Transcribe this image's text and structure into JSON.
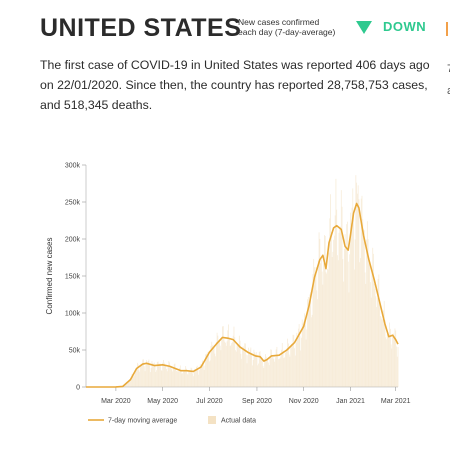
{
  "header": {
    "country": "UNITED STATES",
    "trend_label_line1": "New cases confirmed",
    "trend_label_line2": "each day (7-day-average)",
    "trend_value": "DOWN",
    "trend_color": "#2ec98f",
    "edge_chars_1": "7",
    "edge_chars_2": "a"
  },
  "summary": {
    "line1": "The first case of COVID-19 in United States was reported 406 days ago",
    "line2": "on 22/01/2020. Since then, the country has reported 28,758,753 cases,",
    "line3": "and 518,345 deaths."
  },
  "colors": {
    "line": "#e8a93a",
    "bars": "#f7ecd9",
    "grid": "#e6e6e6",
    "text": "#2b2b2b"
  },
  "chart_data": {
    "type": "line",
    "ylabel": "Confirmed new cases",
    "ylim": [
      0,
      300000
    ],
    "yticks": [
      {
        "value": 0,
        "label": "0"
      },
      {
        "value": 50000,
        "label": "50k"
      },
      {
        "value": 100000,
        "label": "100k"
      },
      {
        "value": 150000,
        "label": "150k"
      },
      {
        "value": 200000,
        "label": "200k"
      },
      {
        "value": 250000,
        "label": "250k"
      },
      {
        "value": 300000,
        "label": "300k"
      }
    ],
    "xticks": [
      {
        "date": "2020-03-01",
        "label": "Mar 2020"
      },
      {
        "date": "2020-05-01",
        "label": "May 2020"
      },
      {
        "date": "2020-07-01",
        "label": "Jul 2020"
      },
      {
        "date": "2020-09-01",
        "label": "Sep 2020"
      },
      {
        "date": "2020-11-01",
        "label": "Nov 2020"
      },
      {
        "date": "2021-01-01",
        "label": "Jan 2021"
      },
      {
        "date": "2021-03-01",
        "label": "Mar 2021"
      }
    ],
    "xlim": [
      "2020-01-22",
      "2021-03-04"
    ],
    "series": [
      {
        "name": "7-day moving average",
        "points": [
          [
            "2020-01-22",
            0
          ],
          [
            "2020-02-15",
            0
          ],
          [
            "2020-03-01",
            100
          ],
          [
            "2020-03-10",
            800
          ],
          [
            "2020-03-20",
            10000
          ],
          [
            "2020-03-28",
            25000
          ],
          [
            "2020-04-05",
            31000
          ],
          [
            "2020-04-10",
            32000
          ],
          [
            "2020-04-20",
            29000
          ],
          [
            "2020-05-01",
            30000
          ],
          [
            "2020-05-10",
            28000
          ],
          [
            "2020-05-20",
            24000
          ],
          [
            "2020-05-25",
            22000
          ],
          [
            "2020-06-01",
            22000
          ],
          [
            "2020-06-10",
            21000
          ],
          [
            "2020-06-20",
            27000
          ],
          [
            "2020-06-25",
            36000
          ],
          [
            "2020-07-01",
            47000
          ],
          [
            "2020-07-10",
            58000
          ],
          [
            "2020-07-18",
            67000
          ],
          [
            "2020-07-25",
            66000
          ],
          [
            "2020-08-01",
            64000
          ],
          [
            "2020-08-10",
            54000
          ],
          [
            "2020-08-20",
            47000
          ],
          [
            "2020-08-30",
            42000
          ],
          [
            "2020-09-05",
            41000
          ],
          [
            "2020-09-10",
            35000
          ],
          [
            "2020-09-14",
            37000
          ],
          [
            "2020-09-20",
            42000
          ],
          [
            "2020-09-30",
            43000
          ],
          [
            "2020-10-10",
            50000
          ],
          [
            "2020-10-20",
            60000
          ],
          [
            "2020-11-01",
            82000
          ],
          [
            "2020-11-08",
            110000
          ],
          [
            "2020-11-15",
            148000
          ],
          [
            "2020-11-22",
            172000
          ],
          [
            "2020-11-26",
            178000
          ],
          [
            "2020-11-30",
            160000
          ],
          [
            "2020-12-04",
            195000
          ],
          [
            "2020-12-10",
            215000
          ],
          [
            "2020-12-14",
            218000
          ],
          [
            "2020-12-20",
            213000
          ],
          [
            "2020-12-25",
            190000
          ],
          [
            "2020-12-29",
            185000
          ],
          [
            "2021-01-01",
            205000
          ],
          [
            "2021-01-05",
            235000
          ],
          [
            "2021-01-09",
            248000
          ],
          [
            "2021-01-12",
            242000
          ],
          [
            "2021-01-18",
            205000
          ],
          [
            "2021-01-25",
            172000
          ],
          [
            "2021-02-01",
            145000
          ],
          [
            "2021-02-08",
            115000
          ],
          [
            "2021-02-15",
            85000
          ],
          [
            "2021-02-20",
            68000
          ],
          [
            "2021-02-25",
            70000
          ],
          [
            "2021-03-01",
            64000
          ],
          [
            "2021-03-04",
            58000
          ]
        ]
      }
    ],
    "legend": [
      {
        "label": "7-day moving average",
        "kind": "line"
      },
      {
        "label": "Actual data",
        "kind": "bar"
      }
    ],
    "legend_position": "bottom-left",
    "grid": false
  }
}
